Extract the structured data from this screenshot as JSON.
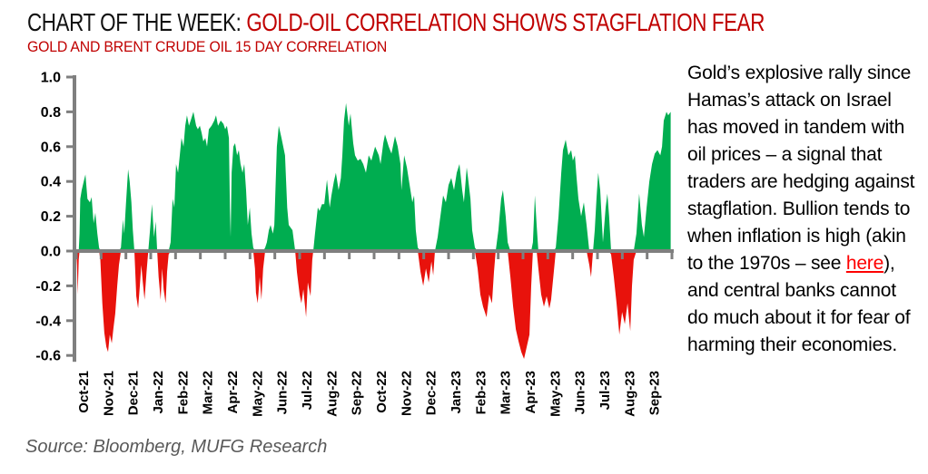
{
  "header": {
    "title_black": "CHART OF THE WEEK: ",
    "title_red": "GOLD-OIL CORRELATION SHOWS STAGFLATION FEAR",
    "subtitle": "GOLD AND BRENT CRUDE OIL 15 DAY CORRELATION",
    "title_accent_color": "#c00000"
  },
  "commentary": {
    "text_before": "Gold’s explosive rally since Hamas’s attack on Israel has moved in tandem with oil prices – a signal that traders are hedging against stagflation. Bullion tends to when inflation is high (akin to the 1970s – see ",
    "link_label": "here",
    "text_after": "), and central banks cannot do much about it for fear of harming their economies.",
    "link_color": "#fe0000"
  },
  "source": "Source: Bloomberg, MUFG Research",
  "chart_data": {
    "type": "area",
    "title": "GOLD AND BRENT CRUDE OIL 15 DAY CORRELATION",
    "xlabel": "",
    "ylabel": "",
    "ylim": [
      -0.6,
      1.0
    ],
    "ytick_labels": [
      "1.0",
      "0.8",
      "0.6",
      "0.4",
      "0.2",
      "0.0",
      "-0.2",
      "-0.4",
      "-0.6"
    ],
    "ytick_values": [
      1.0,
      0.8,
      0.6,
      0.4,
      0.2,
      0.0,
      -0.2,
      -0.4,
      -0.6
    ],
    "x_tick_labels": [
      "Oct-21",
      "Nov-21",
      "Dec-21",
      "Jan-22",
      "Feb-22",
      "Mar-22",
      "Apr-22",
      "May-22",
      "Jun-22",
      "Jul-22",
      "Aug-22",
      "Sep-22",
      "Oct-22",
      "Nov-22",
      "Dec-22",
      "Jan-23",
      "Feb-23",
      "Mar-23",
      "Apr-23",
      "May-23",
      "Jun-23",
      "Jul-23",
      "Aug-23",
      "Sep-23"
    ],
    "x_months_span": 24,
    "grid": false,
    "legend_position": "none",
    "colors": {
      "positive": "#00ad50",
      "negative": "#e8120c",
      "axis": "#7f7f7f"
    },
    "series": [
      {
        "name": "Gold vs Brent crude oil 15-day correlation",
        "x_unit": "months since Oct-2021 axis start",
        "points": [
          [
            0.0,
            0.0
          ],
          [
            0.03,
            -0.08
          ],
          [
            0.06,
            -0.25
          ],
          [
            0.1,
            -0.05
          ],
          [
            0.13,
            0.1
          ],
          [
            0.16,
            0.3
          ],
          [
            0.22,
            0.35
          ],
          [
            0.3,
            0.4
          ],
          [
            0.37,
            0.44
          ],
          [
            0.45,
            0.3
          ],
          [
            0.55,
            0.28
          ],
          [
            0.62,
            0.31
          ],
          [
            0.7,
            0.16
          ],
          [
            0.77,
            0.22
          ],
          [
            0.85,
            0.1
          ],
          [
            0.92,
            0.02
          ],
          [
            0.97,
            -0.05
          ],
          [
            1.05,
            -0.3
          ],
          [
            1.13,
            -0.47
          ],
          [
            1.21,
            -0.55
          ],
          [
            1.28,
            -0.58
          ],
          [
            1.35,
            -0.48
          ],
          [
            1.43,
            -0.53
          ],
          [
            1.5,
            -0.44
          ],
          [
            1.57,
            -0.36
          ],
          [
            1.65,
            -0.2
          ],
          [
            1.72,
            -0.08
          ],
          [
            1.8,
            0.02
          ],
          [
            1.88,
            0.18
          ],
          [
            1.93,
            0.1
          ],
          [
            2.0,
            0.27
          ],
          [
            2.09,
            0.47
          ],
          [
            2.15,
            0.4
          ],
          [
            2.22,
            0.28
          ],
          [
            2.28,
            0.12
          ],
          [
            2.34,
            0.0
          ],
          [
            2.42,
            -0.26
          ],
          [
            2.49,
            -0.33
          ],
          [
            2.56,
            -0.2
          ],
          [
            2.62,
            -0.08
          ],
          [
            2.68,
            -0.18
          ],
          [
            2.75,
            -0.28
          ],
          [
            2.83,
            -0.12
          ],
          [
            2.9,
            0.0
          ],
          [
            2.97,
            0.12
          ],
          [
            3.05,
            0.27
          ],
          [
            3.13,
            0.08
          ],
          [
            3.2,
            0.17
          ],
          [
            3.26,
            0.0
          ],
          [
            3.32,
            -0.15
          ],
          [
            3.4,
            -0.28
          ],
          [
            3.46,
            -0.1
          ],
          [
            3.52,
            -0.22
          ],
          [
            3.6,
            -0.3
          ],
          [
            3.66,
            -0.12
          ],
          [
            3.72,
            -0.02
          ],
          [
            3.8,
            0.05
          ],
          [
            3.88,
            0.3
          ],
          [
            3.95,
            0.25
          ],
          [
            4.02,
            0.5
          ],
          [
            4.1,
            0.45
          ],
          [
            4.17,
            0.55
          ],
          [
            4.24,
            0.65
          ],
          [
            4.32,
            0.6
          ],
          [
            4.39,
            0.72
          ],
          [
            4.46,
            0.78
          ],
          [
            4.54,
            0.72
          ],
          [
            4.61,
            0.75
          ],
          [
            4.72,
            0.8
          ],
          [
            4.83,
            0.72
          ],
          [
            4.9,
            0.7
          ],
          [
            4.98,
            0.72
          ],
          [
            5.05,
            0.68
          ],
          [
            5.12,
            0.63
          ],
          [
            5.2,
            0.65
          ],
          [
            5.27,
            0.6
          ],
          [
            5.34,
            0.7
          ],
          [
            5.45,
            0.72
          ],
          [
            5.56,
            0.75
          ],
          [
            5.63,
            0.78
          ],
          [
            5.71,
            0.72
          ],
          [
            5.82,
            0.75
          ],
          [
            5.93,
            0.73
          ],
          [
            6.0,
            0.7
          ],
          [
            6.07,
            0.72
          ],
          [
            6.15,
            0.65
          ],
          [
            6.19,
            0.25
          ],
          [
            6.22,
            0.08
          ],
          [
            6.26,
            0.45
          ],
          [
            6.33,
            0.6
          ],
          [
            6.4,
            0.62
          ],
          [
            6.48,
            0.55
          ],
          [
            6.55,
            0.58
          ],
          [
            6.62,
            0.5
          ],
          [
            6.7,
            0.45
          ],
          [
            6.77,
            0.5
          ],
          [
            6.84,
            0.35
          ],
          [
            6.91,
            0.15
          ],
          [
            6.99,
            0.25
          ],
          [
            7.06,
            0.1
          ],
          [
            7.13,
            0.02
          ],
          [
            7.2,
            -0.1
          ],
          [
            7.24,
            -0.24
          ],
          [
            7.31,
            -0.3
          ],
          [
            7.39,
            -0.15
          ],
          [
            7.46,
            -0.28
          ],
          [
            7.53,
            -0.1
          ],
          [
            7.61,
            0.02
          ],
          [
            7.68,
            0.05
          ],
          [
            7.76,
            0.12
          ],
          [
            7.83,
            0.15
          ],
          [
            7.92,
            0.1
          ],
          [
            7.98,
            0.15
          ],
          [
            8.08,
            0.6
          ],
          [
            8.16,
            0.72
          ],
          [
            8.27,
            0.65
          ],
          [
            8.41,
            0.55
          ],
          [
            8.5,
            0.25
          ],
          [
            8.56,
            0.15
          ],
          [
            8.71,
            0.12
          ],
          [
            8.82,
            0.0
          ],
          [
            8.89,
            -0.12
          ],
          [
            9.0,
            -0.25
          ],
          [
            9.07,
            -0.3
          ],
          [
            9.15,
            -0.22
          ],
          [
            9.26,
            -0.38
          ],
          [
            9.33,
            -0.18
          ],
          [
            9.44,
            -0.26
          ],
          [
            9.51,
            -0.05
          ],
          [
            9.55,
            0.0
          ],
          [
            9.62,
            0.1
          ],
          [
            9.73,
            0.25
          ],
          [
            9.8,
            0.23
          ],
          [
            9.9,
            0.27
          ],
          [
            9.99,
            0.27
          ],
          [
            10.1,
            0.41
          ],
          [
            10.21,
            0.25
          ],
          [
            10.28,
            0.32
          ],
          [
            10.38,
            0.4
          ],
          [
            10.46,
            0.45
          ],
          [
            10.57,
            0.35
          ],
          [
            10.66,
            0.42
          ],
          [
            10.72,
            0.55
          ],
          [
            10.79,
            0.75
          ],
          [
            10.87,
            0.85
          ],
          [
            10.98,
            0.72
          ],
          [
            11.05,
            0.79
          ],
          [
            11.16,
            0.62
          ],
          [
            11.23,
            0.55
          ],
          [
            11.34,
            0.52
          ],
          [
            11.45,
            0.53
          ],
          [
            11.56,
            0.5
          ],
          [
            11.67,
            0.45
          ],
          [
            11.78,
            0.55
          ],
          [
            11.89,
            0.52
          ],
          [
            12.04,
            0.6
          ],
          [
            12.19,
            0.55
          ],
          [
            12.26,
            0.5
          ],
          [
            12.37,
            0.62
          ],
          [
            12.44,
            0.67
          ],
          [
            12.59,
            0.6
          ],
          [
            12.7,
            0.56
          ],
          [
            12.84,
            0.66
          ],
          [
            12.95,
            0.6
          ],
          [
            13.06,
            0.5
          ],
          [
            13.1,
            0.35
          ],
          [
            13.21,
            0.55
          ],
          [
            13.32,
            0.48
          ],
          [
            13.43,
            0.38
          ],
          [
            13.54,
            0.28
          ],
          [
            13.61,
            0.32
          ],
          [
            13.68,
            0.12
          ],
          [
            13.76,
            0.02
          ],
          [
            13.87,
            -0.12
          ],
          [
            13.98,
            -0.2
          ],
          [
            14.09,
            -0.1
          ],
          [
            14.2,
            -0.18
          ],
          [
            14.31,
            -0.06
          ],
          [
            14.38,
            -0.14
          ],
          [
            14.45,
            0.0
          ],
          [
            14.56,
            0.08
          ],
          [
            14.67,
            0.2
          ],
          [
            14.78,
            0.32
          ],
          [
            14.89,
            0.28
          ],
          [
            15.0,
            0.38
          ],
          [
            15.11,
            0.42
          ],
          [
            15.22,
            0.35
          ],
          [
            15.33,
            0.45
          ],
          [
            15.44,
            0.5
          ],
          [
            15.55,
            0.35
          ],
          [
            15.62,
            0.28
          ],
          [
            15.73,
            0.48
          ],
          [
            15.8,
            0.4
          ],
          [
            15.88,
            0.3
          ],
          [
            15.95,
            0.12
          ],
          [
            16.06,
            0.02
          ],
          [
            16.17,
            -0.1
          ],
          [
            16.28,
            -0.25
          ],
          [
            16.39,
            -0.32
          ],
          [
            16.53,
            -0.38
          ],
          [
            16.64,
            -0.25
          ],
          [
            16.75,
            -0.3
          ],
          [
            16.83,
            -0.12
          ],
          [
            16.9,
            0.0
          ],
          [
            17.01,
            0.12
          ],
          [
            17.12,
            0.3
          ],
          [
            17.19,
            0.35
          ],
          [
            17.3,
            0.2
          ],
          [
            17.38,
            0.05
          ],
          [
            17.49,
            -0.15
          ],
          [
            17.6,
            -0.32
          ],
          [
            17.71,
            -0.45
          ],
          [
            17.82,
            -0.52
          ],
          [
            17.93,
            -0.58
          ],
          [
            18.04,
            -0.62
          ],
          [
            18.15,
            -0.55
          ],
          [
            18.26,
            -0.48
          ],
          [
            18.33,
            -0.2
          ],
          [
            18.4,
            0.05
          ],
          [
            18.48,
            0.32
          ],
          [
            18.55,
            0.15
          ],
          [
            18.62,
            -0.1
          ],
          [
            18.73,
            -0.25
          ],
          [
            18.84,
            -0.32
          ],
          [
            18.95,
            -0.26
          ],
          [
            19.06,
            -0.33
          ],
          [
            19.13,
            -0.28
          ],
          [
            19.24,
            -0.12
          ],
          [
            19.32,
            0.02
          ],
          [
            19.43,
            0.2
          ],
          [
            19.54,
            0.45
          ],
          [
            19.61,
            0.58
          ],
          [
            19.72,
            0.64
          ],
          [
            19.83,
            0.55
          ],
          [
            19.94,
            0.58
          ],
          [
            20.01,
            0.52
          ],
          [
            20.09,
            0.55
          ],
          [
            20.16,
            0.42
          ],
          [
            20.23,
            0.3
          ],
          [
            20.34,
            0.2
          ],
          [
            20.45,
            0.28
          ],
          [
            20.56,
            0.15
          ],
          [
            20.67,
            -0.08
          ],
          [
            20.74,
            -0.15
          ],
          [
            20.82,
            0.0
          ],
          [
            20.89,
            0.12
          ],
          [
            20.96,
            0.3
          ],
          [
            21.03,
            0.45
          ],
          [
            21.11,
            0.35
          ],
          [
            21.22,
            0.05
          ],
          [
            21.33,
            0.25
          ],
          [
            21.4,
            0.33
          ],
          [
            21.47,
            0.2
          ],
          [
            21.55,
            -0.02
          ],
          [
            21.66,
            -0.15
          ],
          [
            21.77,
            -0.3
          ],
          [
            21.88,
            -0.48
          ],
          [
            21.99,
            -0.35
          ],
          [
            22.1,
            -0.42
          ],
          [
            22.21,
            -0.3
          ],
          [
            22.32,
            -0.46
          ],
          [
            22.39,
            -0.2
          ],
          [
            22.46,
            -0.05
          ],
          [
            22.57,
            0.1
          ],
          [
            22.68,
            0.33
          ],
          [
            22.79,
            0.15
          ],
          [
            22.87,
            0.08
          ],
          [
            22.98,
            0.25
          ],
          [
            23.09,
            0.4
          ],
          [
            23.2,
            0.5
          ],
          [
            23.31,
            0.56
          ],
          [
            23.42,
            0.58
          ],
          [
            23.53,
            0.55
          ],
          [
            23.6,
            0.6
          ],
          [
            23.67,
            0.75
          ],
          [
            23.78,
            0.8
          ],
          [
            23.85,
            0.78
          ],
          [
            23.95,
            0.8
          ]
        ]
      }
    ]
  }
}
